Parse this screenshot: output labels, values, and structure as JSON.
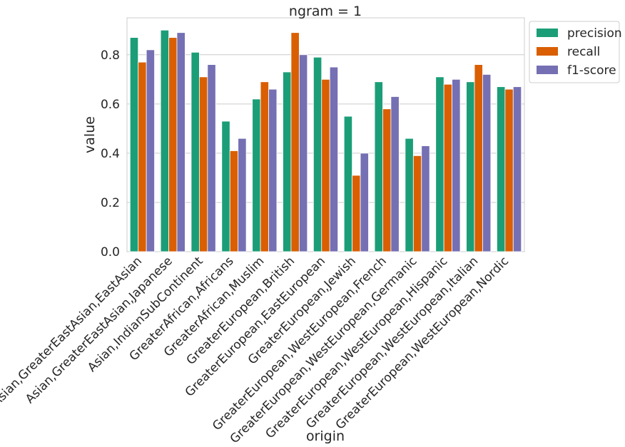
{
  "chart_data": {
    "type": "bar",
    "title": "ngram = 1",
    "xlabel": "origin",
    "ylabel": "value",
    "ylim": [
      0,
      0.95
    ],
    "yticks": [
      "0.0",
      "0.2",
      "0.4",
      "0.6",
      "0.8"
    ],
    "grid": "horizontal",
    "legend_position": "outside-top-right",
    "categories": [
      "Asian,GreaterEastAsian,EastAsian",
      "Asian,GreaterEastAsian,Japanese",
      "Asian,IndianSubContinent",
      "GreaterAfrican,Africans",
      "GreaterAfrican,Muslim",
      "GreaterEuropean,British",
      "GreaterEuropean,EastEuropean",
      "GreaterEuropean,Jewish",
      "GreaterEuropean,WestEuropean,French",
      "GreaterEuropean,WestEuropean,Germanic",
      "GreaterEuropean,WestEuropean,Hispanic",
      "GreaterEuropean,WestEuropean,Italian",
      "GreaterEuropean,WestEuropean,Nordic"
    ],
    "series": [
      {
        "name": "precision",
        "color": "#1b9e77",
        "values": [
          0.87,
          0.9,
          0.81,
          0.53,
          0.62,
          0.73,
          0.79,
          0.55,
          0.69,
          0.46,
          0.71,
          0.69,
          0.67
        ]
      },
      {
        "name": "recall",
        "color": "#d95f02",
        "values": [
          0.77,
          0.87,
          0.71,
          0.41,
          0.69,
          0.89,
          0.7,
          0.31,
          0.58,
          0.39,
          0.68,
          0.76,
          0.66
        ]
      },
      {
        "name": "f1-score",
        "color": "#7570b3",
        "values": [
          0.82,
          0.89,
          0.76,
          0.46,
          0.66,
          0.8,
          0.75,
          0.4,
          0.63,
          0.43,
          0.7,
          0.72,
          0.67
        ]
      }
    ]
  }
}
